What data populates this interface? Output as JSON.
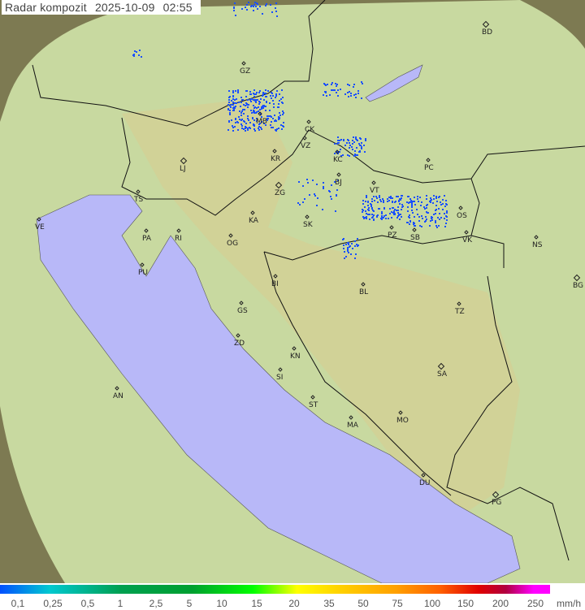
{
  "title": {
    "label": "Radar kompozit",
    "date": "2025-10-09",
    "time": "02:55"
  },
  "legend": {
    "unit": "mm/h",
    "ticks": [
      "0,1",
      "0,25",
      "0,5",
      "1",
      "2,5",
      "5",
      "10",
      "15",
      "20",
      "35",
      "50",
      "75",
      "100",
      "150",
      "200",
      "250"
    ]
  },
  "colors": {
    "land": "#c9dba0",
    "sea": "#b8b8f8",
    "outside": "#8a8a5a",
    "rain": "#1a50ff"
  },
  "cities": [
    "GZ",
    "MB",
    "CK",
    "VZ",
    "KR",
    "KC",
    "BJ",
    "PC",
    "ZG",
    "LJ",
    "TS",
    "VE",
    "RI",
    "KA",
    "SK",
    "VT",
    "OS",
    "PZ",
    "SB",
    "VK",
    "NS",
    "PA",
    "OG",
    "PU",
    "BI",
    "BL",
    "BG",
    "GS",
    "TZ",
    "ZD",
    "KN",
    "SI",
    "SA",
    "AN",
    "ST",
    "MO",
    "MA",
    "DU",
    "PG",
    "BD"
  ]
}
